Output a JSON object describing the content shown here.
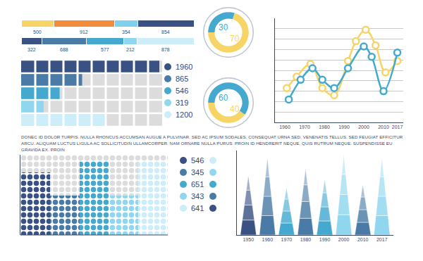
{
  "paragraph": "DONEC ID DOLOR TURPIS. NULLA RHONCUS ACCUMSAN AUGUE A PULVINAR. SED AC IPSUM SODALES, CONSEQUAT URNA SED, VENENATIS TELLUS. SED FEUGIAT EFFICITUR ARCU. ALIQUAM LUCTUS LIGULA AC SOLLICITUDIN ULLAMCORPER. NAM ORNARE NULLA PURUS. PROIN ID HENDRERIT NEQUE, QUIS RUTRUM NEQUE. SUSPENDISSE EU GRAVIDA EX. PROIN",
  "chart_data": [
    {
      "type": "bar",
      "orientation": "horizontal",
      "stacked": true,
      "values": [
        500,
        912,
        354,
        854
      ],
      "colors": [
        "#f6d466",
        "#f28c3a",
        "#7fd0ec",
        "#3a5283"
      ],
      "xlim": [
        0,
        2620
      ],
      "tick_labels": false,
      "data_labels": true
    },
    {
      "type": "bar",
      "orientation": "horizontal",
      "stacked": true,
      "values": [
        322,
        688,
        577,
        212,
        878
      ],
      "colors": [
        "#3a5283",
        "#4a7ba6",
        "#45a9cf",
        "#8fd6ee",
        "#cdeef9"
      ],
      "xlim": [
        0,
        2677
      ],
      "tick_labels": false,
      "data_labels": true
    },
    {
      "type": "bar",
      "orientation": "horizontal",
      "values": [
        1960,
        865,
        546,
        319,
        1200
      ],
      "colors": [
        "#3a5283",
        "#4a7ba6",
        "#45a9cf",
        "#8fd6ee",
        "#cdeef9"
      ],
      "xlim": [
        0,
        2000
      ],
      "tick_labels": false,
      "legend": "right",
      "marker": "square"
    },
    {
      "type": "pie",
      "values": [
        30,
        70
      ],
      "colors": [
        "#45a9cf",
        "#f6d466"
      ],
      "data_labels": true
    },
    {
      "type": "pie",
      "values": [
        60,
        40
      ],
      "colors": [
        "#45a9cf",
        "#f6d466"
      ],
      "data_labels": true
    },
    {
      "type": "line",
      "series": [
        {
          "color": "#f6d466",
          "x": [
            1961,
            1966,
            1973,
            1979,
            1985,
            1992,
            1996,
            2001,
            2006,
            2011,
            2017
          ],
          "values": [
            3.3,
            4.4,
            5.6,
            3.3,
            2.6,
            5.9,
            7.8,
            8.9,
            7.4,
            4.8,
            5.9
          ]
        },
        {
          "color": "#45a9cf",
          "x": [
            1962,
            1968,
            1974,
            1979,
            1985,
            1992,
            2000,
            2004,
            2010,
            2017
          ],
          "values": [
            2.2,
            4.1,
            5.2,
            4.1,
            3.3,
            5.2,
            7.3,
            6.3,
            3.0,
            6.7
          ]
        }
      ],
      "xlim": [
        1955,
        2020
      ],
      "xticks": [
        1960,
        1970,
        1980,
        1990,
        2000,
        2010,
        2017
      ],
      "ylim": [
        0,
        10
      ],
      "yticks": [
        1,
        2,
        3,
        4,
        5,
        6,
        7,
        8,
        9
      ],
      "grid": true,
      "tick_labels": "x",
      "marker": "circle",
      "line_style": "solid"
    },
    {
      "type": "bar",
      "values": [
        546,
        345,
        651,
        343,
        641
      ],
      "colors": [
        "#3a5283",
        "#4a7ba6",
        "#45a9cf",
        "#8fd6ee",
        "#cdeef9"
      ],
      "ylim": [
        0,
        700
      ],
      "tick_labels": false,
      "legend": "right",
      "marker": "dot"
    },
    {
      "type": "spike",
      "categories": [
        "1950",
        "1960",
        "1970",
        "1980",
        "1990",
        "2000",
        "2010",
        "2017"
      ],
      "values": [
        85,
        110,
        68,
        95,
        80,
        115,
        72,
        110
      ],
      "colors": [
        "#3a5283",
        "#4a7ba6",
        "#45a9cf",
        "#4a7ba6",
        "#45a9cf",
        "#8fd6ee",
        "#4a7ba6",
        "#8fd6ee"
      ],
      "ylim": [
        0,
        120
      ],
      "tick_labels": "x"
    }
  ]
}
